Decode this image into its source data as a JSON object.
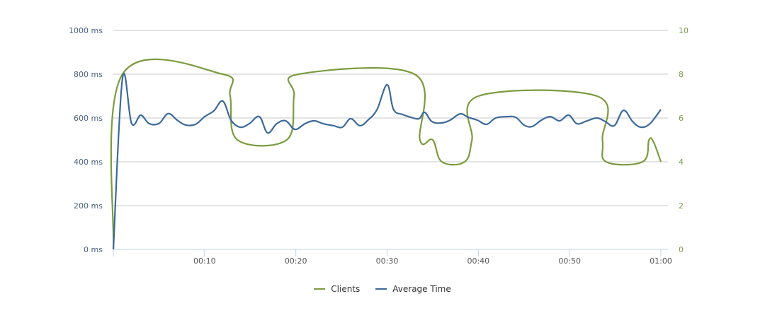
{
  "chart_data": {
    "type": "line",
    "title": "",
    "xlabel": "",
    "ylabel": "",
    "x_ticks": [
      "00:10",
      "00:20",
      "00:30",
      "00:40",
      "00:50",
      "01:00"
    ],
    "y_left": {
      "ticks": [
        "0 ms",
        "200 ms",
        "400 ms",
        "600 ms",
        "800 ms",
        "1000 ms"
      ],
      "range": [
        0,
        1000
      ],
      "unit": "ms"
    },
    "y_right": {
      "ticks": [
        "0",
        "2",
        "4",
        "6",
        "8",
        "10"
      ],
      "range": [
        0,
        10
      ]
    },
    "grid": true,
    "legend_position": "bottom",
    "series": [
      {
        "name": "Clients",
        "axis": "right",
        "color": "#7a9c3f",
        "points": [
          [
            0,
            0
          ],
          [
            1,
            8
          ],
          [
            12,
            8
          ],
          [
            12.8,
            7
          ],
          [
            13.6,
            5
          ],
          [
            19,
            5
          ],
          [
            19.8,
            7
          ],
          [
            20.3,
            8
          ],
          [
            33,
            8
          ],
          [
            33.6,
            5
          ],
          [
            35,
            5
          ],
          [
            36,
            4
          ],
          [
            38.5,
            4
          ],
          [
            39.3,
            5
          ],
          [
            40,
            7
          ],
          [
            53,
            7
          ],
          [
            53.6,
            5
          ],
          [
            54,
            4
          ],
          [
            58,
            4
          ],
          [
            58.7,
            5
          ],
          [
            59.2,
            4.9
          ],
          [
            60,
            4
          ]
        ]
      },
      {
        "name": "Average Time",
        "axis": "left",
        "color": "#3d6a99",
        "points": [
          [
            0,
            0
          ],
          [
            1,
            780
          ],
          [
            2,
            575
          ],
          [
            3,
            613
          ],
          [
            3.9,
            575
          ],
          [
            5,
            575
          ],
          [
            6,
            620
          ],
          [
            7,
            590
          ],
          [
            7.9,
            568
          ],
          [
            9,
            571
          ],
          [
            10,
            606
          ],
          [
            11,
            632
          ],
          [
            12,
            677
          ],
          [
            12.9,
            590
          ],
          [
            13.9,
            558
          ],
          [
            14.9,
            574
          ],
          [
            16,
            606
          ],
          [
            16.9,
            532
          ],
          [
            17.9,
            574
          ],
          [
            18.9,
            587
          ],
          [
            19.9,
            548
          ],
          [
            21,
            574
          ],
          [
            22,
            587
          ],
          [
            23,
            574
          ],
          [
            24.1,
            565
          ],
          [
            25.1,
            558
          ],
          [
            26,
            597
          ],
          [
            27,
            565
          ],
          [
            27.9,
            590
          ],
          [
            28.9,
            639
          ],
          [
            30,
            752
          ],
          [
            30.7,
            639
          ],
          [
            31.7,
            616
          ],
          [
            32.6,
            603
          ],
          [
            33.5,
            597
          ],
          [
            34.1,
            626
          ],
          [
            34.9,
            584
          ],
          [
            35.9,
            577
          ],
          [
            36.9,
            590
          ],
          [
            38,
            619
          ],
          [
            38.9,
            603
          ],
          [
            39.9,
            590
          ],
          [
            40.9,
            571
          ],
          [
            41.9,
            600
          ],
          [
            43.1,
            606
          ],
          [
            44.1,
            603
          ],
          [
            45,
            568
          ],
          [
            45.9,
            561
          ],
          [
            46.9,
            590
          ],
          [
            47.9,
            606
          ],
          [
            48.9,
            587
          ],
          [
            49.9,
            613
          ],
          [
            50.8,
            574
          ],
          [
            51.9,
            587
          ],
          [
            53,
            600
          ],
          [
            53.9,
            584
          ],
          [
            54.9,
            565
          ],
          [
            55.9,
            635
          ],
          [
            56.9,
            584
          ],
          [
            57.8,
            558
          ],
          [
            58.8,
            574
          ],
          [
            60,
            639
          ]
        ]
      }
    ]
  },
  "legend": {
    "items": [
      {
        "label": "Clients",
        "color": "#7a9c3f"
      },
      {
        "label": "Average Time",
        "color": "#3d6a99"
      }
    ]
  }
}
